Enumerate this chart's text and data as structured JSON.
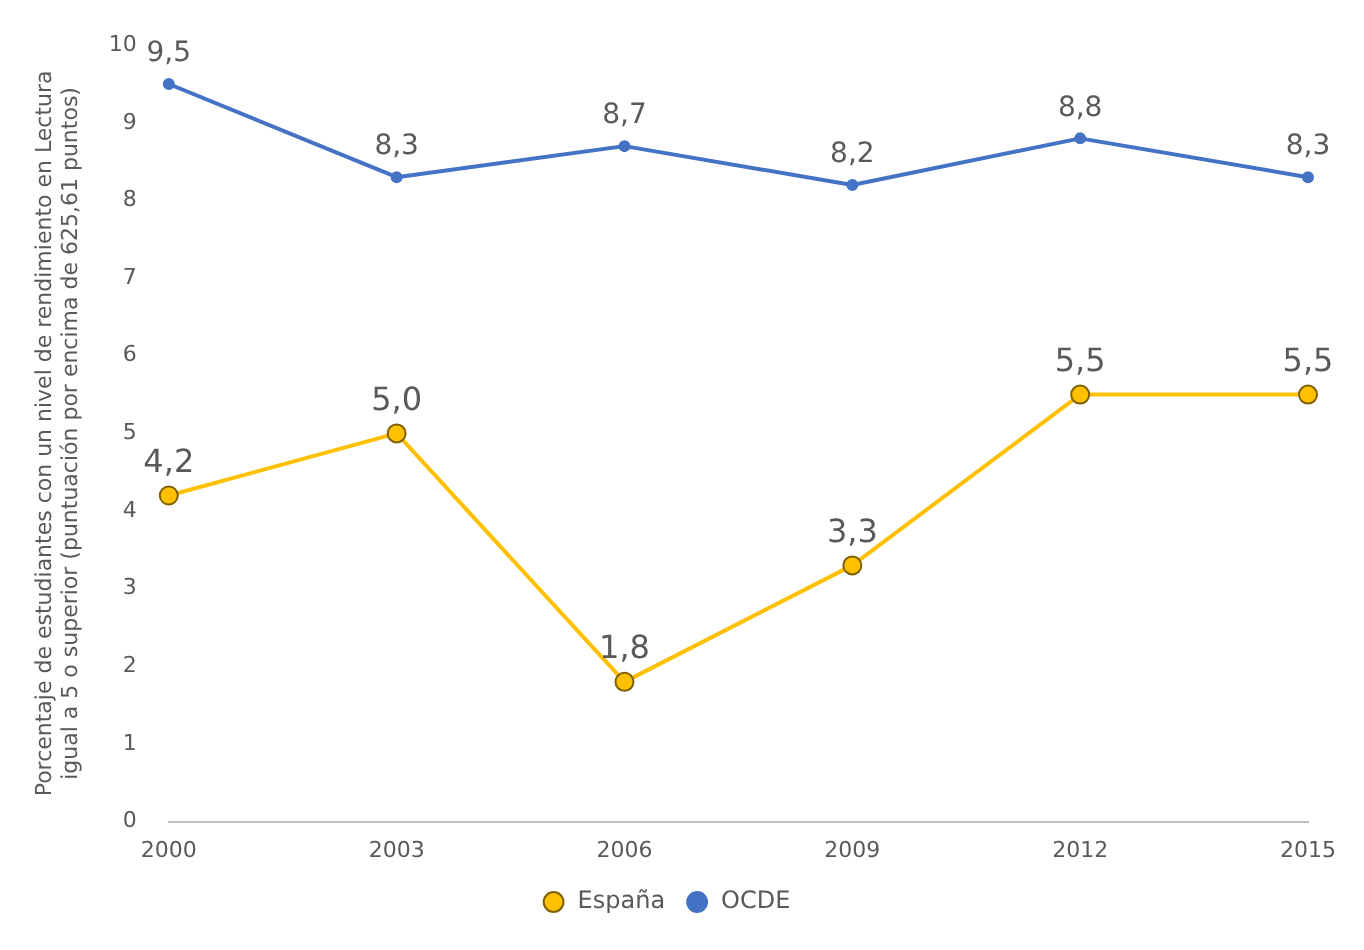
{
  "chart_data": {
    "type": "line",
    "ylabel": "Porcentaje de estudiantes con un nivel de rendimiento en Lectura igual a 5 o superior (puntuación por encima de 625,61 puntos)",
    "categories": [
      "2000",
      "2003",
      "2006",
      "2009",
      "2012",
      "2015"
    ],
    "series": [
      {
        "name": "España",
        "color": "#ffc000",
        "values": [
          4.2,
          5.0,
          1.8,
          3.3,
          5.5,
          5.5
        ],
        "value_labels": [
          "4,2",
          "5,0",
          "1,8",
          "3,3",
          "5,5",
          "5,5"
        ],
        "marker": "circle"
      },
      {
        "name": "OCDE",
        "color": "#4472c4",
        "values": [
          9.5,
          8.3,
          8.7,
          8.2,
          8.8,
          8.3
        ],
        "value_labels": [
          "9,5",
          "8,3",
          "8,7",
          "8,2",
          "8,8",
          "8,3"
        ],
        "marker": "circle"
      }
    ],
    "ylim": [
      0,
      10
    ],
    "yticks": [
      0,
      1,
      2,
      3,
      4,
      5,
      6,
      7,
      8,
      9,
      10
    ],
    "grid": false,
    "legend": "bottom",
    "line_style": "solid"
  }
}
